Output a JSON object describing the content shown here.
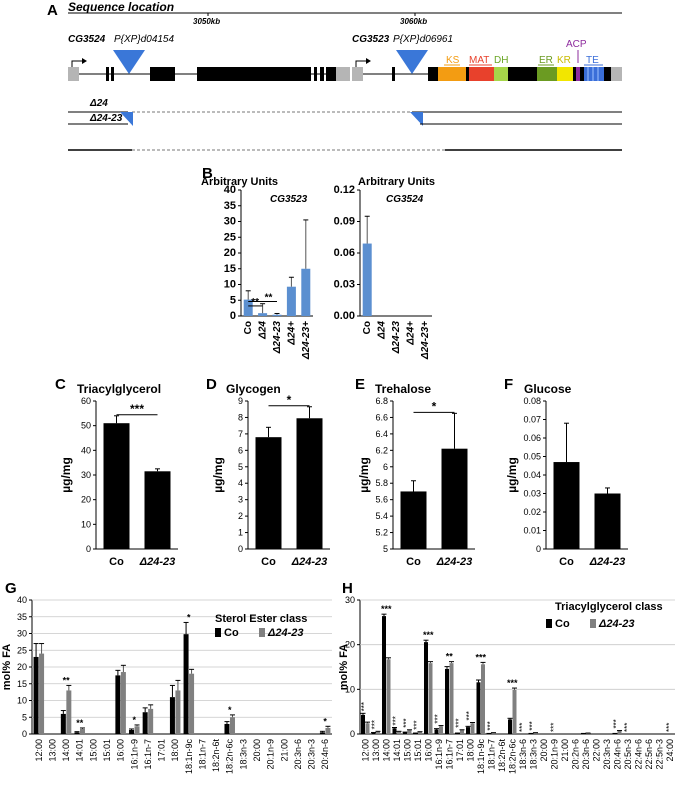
{
  "panel_letters": {
    "A": "A",
    "B": "B",
    "C": "C",
    "D": "D",
    "E": "E",
    "F": "F",
    "G": "G",
    "H": "H"
  },
  "panelA": {
    "title": "Sequence location",
    "ruler_labels": [
      "3050kb",
      "3060kb"
    ],
    "genes": [
      "CG3524",
      "CG3523"
    ],
    "insertions": [
      "P{XP}d04154",
      "P{XP}d06961"
    ],
    "alleles": [
      "Δ24",
      "Δ24-23"
    ],
    "domains": [
      {
        "label": "KS",
        "color": "#f39c12"
      },
      {
        "label": "MAT",
        "color": "#e8412c"
      },
      {
        "label": "DH",
        "color": "#a6d64a"
      },
      {
        "label": "ER",
        "color": "#6b9b22"
      },
      {
        "label": "KR",
        "color": "#f2e600"
      },
      {
        "label": "ACP",
        "color": "#8e2c9e"
      },
      {
        "label": "TE",
        "color": "#3a6ed8"
      }
    ]
  },
  "chart_data": [
    {
      "id": "B1",
      "type": "bar",
      "ylabel": "Arbitrary Units",
      "title": "CG3523",
      "categories": [
        "Co",
        "Δ24",
        "Δ24-23",
        "Δ24+",
        "Δ24-23+"
      ],
      "values": [
        5.2,
        0.9,
        0.4,
        9.3,
        15.0
      ],
      "errors": [
        2.8,
        3.0,
        0.4,
        3.0,
        15.5
      ],
      "ylim": [
        0,
        40
      ],
      "yticks": [
        "0",
        "5",
        "10",
        "15",
        "20",
        "25",
        "30",
        "35",
        "40"
      ],
      "significance": [
        "**",
        "**"
      ],
      "color": "#5b8fd0"
    },
    {
      "id": "B2",
      "type": "bar",
      "ylabel": "Arbitrary Units",
      "title": "CG3524",
      "categories": [
        "Co",
        "Δ24",
        "Δ24-23",
        "Δ24+",
        "Δ24-23+"
      ],
      "values": [
        0.069,
        0,
        0,
        0,
        0
      ],
      "errors": [
        0.026,
        0,
        0,
        0,
        0
      ],
      "ylim": [
        0,
        0.12
      ],
      "yticks": [
        "0.00",
        "0.03",
        "0.06",
        "0.09",
        "0.12"
      ],
      "color": "#5b8fd0"
    },
    {
      "id": "C",
      "type": "bar",
      "title": "Triacylglycerol",
      "ylabel": "µg/mg",
      "categories": [
        "Co",
        "Δ24-23"
      ],
      "values": [
        51,
        31.5
      ],
      "errors": [
        3,
        1
      ],
      "ylim": [
        0,
        60
      ],
      "yticks": [
        "0",
        "10",
        "20",
        "30",
        "40",
        "50",
        "60"
      ],
      "significance": "***"
    },
    {
      "id": "D",
      "type": "bar",
      "title": "Glycogen",
      "ylabel": "µg/mg",
      "categories": [
        "Co",
        "Δ24-23"
      ],
      "values": [
        6.8,
        7.95
      ],
      "errors": [
        0.6,
        0.7
      ],
      "ylim": [
        0,
        9
      ],
      "yticks": [
        "0",
        "1",
        "2",
        "3",
        "4",
        "5",
        "6",
        "7",
        "8",
        "9"
      ],
      "significance": "*"
    },
    {
      "id": "E",
      "type": "bar",
      "title": "Trehalose",
      "ylabel": "µg/mg",
      "categories": [
        "Co",
        "Δ24-23"
      ],
      "values": [
        5.7,
        6.22
      ],
      "errors": [
        0.13,
        0.43
      ],
      "ylim": [
        5,
        6.8
      ],
      "yticks": [
        "5",
        "5.2",
        "5.4",
        "5.6",
        "5.8",
        "6",
        "6.2",
        "6.4",
        "6.6",
        "6.8"
      ],
      "significance": "*"
    },
    {
      "id": "F",
      "type": "bar",
      "title": "Glucose",
      "ylabel": "µg/mg",
      "categories": [
        "Co",
        "Δ24-23"
      ],
      "values": [
        0.047,
        0.03
      ],
      "errors": [
        0.021,
        0.003
      ],
      "ylim": [
        0,
        0.08
      ],
      "yticks": [
        "0",
        "0.01",
        "0.02",
        "0.03",
        "0.04",
        "0.05",
        "0.06",
        "0.07",
        "0.08"
      ]
    },
    {
      "id": "G",
      "type": "bar",
      "title": "Sterol Ester class",
      "ylabel": "mol% FA",
      "categories": [
        "12:00",
        "13:00",
        "14:00",
        "14:01",
        "15:00",
        "15:01",
        "16:00",
        "16:1n-9",
        "16:1n-7",
        "17:01",
        "18:00",
        "18:1n-9c",
        "18:1n-7",
        "18:2n-6t",
        "18:2n-6c",
        "18:3n-3",
        "20:00",
        "20:1n-9",
        "21:00",
        "20:3n-6",
        "20:3n-3",
        "20:4n-6"
      ],
      "series": [
        {
          "name": "Co",
          "color": "#000000",
          "values": [
            23,
            0,
            6,
            0.5,
            0,
            0,
            17.5,
            1.2,
            6.5,
            0,
            11,
            29.8,
            0,
            0,
            3,
            0,
            0,
            0,
            0,
            0,
            0,
            0.5
          ],
          "errors": [
            4,
            0,
            1,
            0.2,
            0,
            0,
            1.5,
            0.3,
            1.3,
            0,
            3.5,
            3.5,
            0,
            0,
            0.7,
            0,
            0,
            0,
            0,
            0,
            0,
            0.3
          ]
        },
        {
          "name": "Δ24-23",
          "color": "#808080",
          "values": [
            24,
            0,
            13,
            1.5,
            0,
            0,
            18.5,
            2.3,
            7.5,
            0,
            13,
            18,
            0,
            0,
            5,
            0,
            0,
            0,
            0,
            0,
            0,
            1.8
          ],
          "errors": [
            3,
            0,
            1.5,
            0.3,
            0,
            0,
            2,
            0.4,
            1.2,
            0,
            3,
            1.3,
            0,
            0,
            0.7,
            0,
            0,
            0,
            0,
            0,
            0,
            0.5
          ]
        }
      ],
      "star_labels": {
        "2": "**",
        "3": "**",
        "7": "*",
        "11": "*",
        "14": "*",
        "21": "*"
      },
      "ylim": [
        0,
        40
      ],
      "yticks": [
        "0",
        "5",
        "10",
        "15",
        "20",
        "25",
        "30",
        "35",
        "40"
      ]
    },
    {
      "id": "H",
      "type": "bar",
      "title": "Triacylglycerol class",
      "ylabel": "mol% FA",
      "categories": [
        "12:00",
        "13:00",
        "14:00",
        "14:01",
        "15:00",
        "15:01",
        "16:00",
        "16:1n-9",
        "16:1n-7",
        "17:01",
        "18:00",
        "18:1n-9c",
        "18:1n-7",
        "18:2n-6t",
        "18:2n-6c",
        "18:3n-6",
        "18:3n-3",
        "20:00",
        "20:1n-9",
        "21:00",
        "20:2n-6",
        "20:3n-6",
        "22:00",
        "20:3n-3",
        "20:4n-6",
        "20:5n-3",
        "22:4n-6",
        "22:5n-6",
        "22:5n-3",
        "24:00"
      ],
      "series": [
        {
          "name": "Co",
          "color": "#000000",
          "values": [
            5,
            0.3,
            30.8,
            1.5,
            0.4,
            0.2,
            24,
            1.2,
            17,
            0.2,
            1.8,
            13.5,
            0.1,
            0,
            3.8,
            0,
            0.1,
            0,
            0,
            0,
            0,
            0.1,
            0,
            0,
            0.1,
            0,
            0,
            0,
            0,
            0
          ],
          "errors": [
            0.4,
            0.1,
            0.5,
            0.2,
            0.1,
            0.05,
            0.5,
            0.2,
            0.6,
            0.05,
            0.2,
            0.6,
            0.05,
            0,
            0.3,
            0,
            0.05,
            0,
            0,
            0,
            0,
            0.05,
            0,
            0,
            0.05,
            0,
            0,
            0,
            0,
            0
          ]
        },
        {
          "name": "Δ24-23",
          "color": "#808080",
          "values": [
            2.8,
            0.6,
            19.5,
            0.6,
            1,
            0.5,
            18.5,
            2,
            18.5,
            1,
            2.8,
            18.2,
            0.3,
            0,
            11.5,
            0,
            0.3,
            0,
            0,
            0,
            0,
            0.2,
            0,
            0,
            0.8,
            0,
            0,
            0,
            0,
            0
          ],
          "errors": [
            0.3,
            0.1,
            0.4,
            0.1,
            0.1,
            0.1,
            0.4,
            0.2,
            0.4,
            0.1,
            0.2,
            0.5,
            0.05,
            0,
            0.5,
            0,
            0.05,
            0,
            0,
            0,
            0,
            0.05,
            0,
            0,
            0.1,
            0,
            0,
            0,
            0,
            0
          ]
        }
      ],
      "star_labels": {
        "0": "***",
        "1": "***",
        "2": "***",
        "3": "***",
        "4": "***",
        "5": "***",
        "6": "***",
        "7": "***",
        "8": "**",
        "9": "***",
        "10": "***",
        "11": "***",
        "12": "***",
        "14": "***",
        "15": "***",
        "16": "***",
        "18": "***",
        "24": "***",
        "25": "***",
        "29": "***"
      },
      "ylim": [
        0,
        35
      ],
      "yticks": [
        "0",
        "10",
        "20",
        "30"
      ]
    }
  ]
}
